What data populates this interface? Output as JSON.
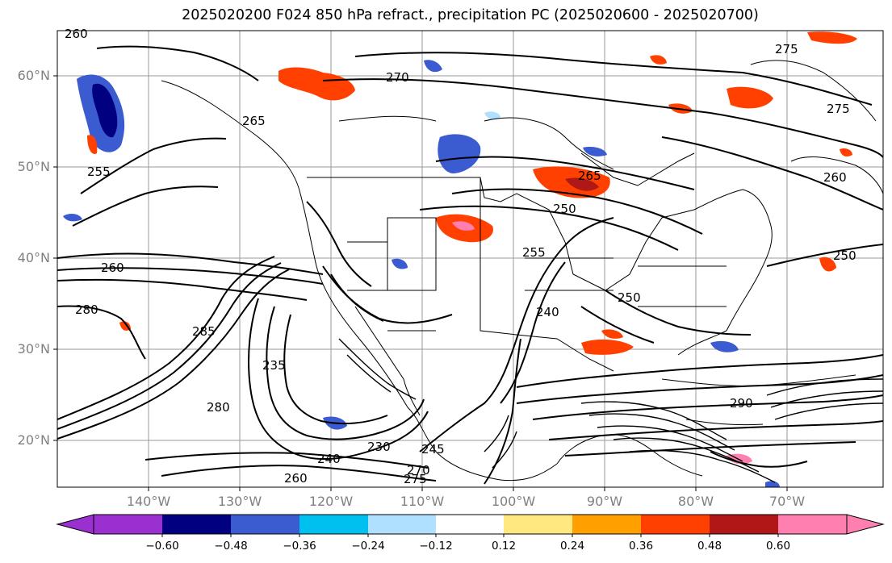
{
  "title": "2025020200 F024 850 hPa refract., precipitation PC (2025020600 - 2025020700)",
  "latitude_labels": [
    "60°N",
    "50°N",
    "40°N",
    "30°N",
    "20°N"
  ],
  "longitude_labels": [
    "140°W",
    "130°W",
    "120°W",
    "110°W",
    "100°W",
    "90°W",
    "80°W",
    "70°W"
  ],
  "contour_labels": [
    "260",
    "270",
    "265",
    "255",
    "250",
    "275",
    "280",
    "285",
    "235",
    "230",
    "240",
    "245",
    "260",
    "270",
    "275",
    "265",
    "250",
    "255",
    "240",
    "250",
    "260",
    "275",
    "290",
    "280",
    "260"
  ],
  "colorbar": {
    "colors": [
      "#9b30d0",
      "#000080",
      "#3b5bd0",
      "#00c0f0",
      "#b0e0ff",
      "#ffffff",
      "#ffe880",
      "#ffa000",
      "#ff4000",
      "#b01818",
      "#ff80b0"
    ],
    "tick_labels": [
      "−0.60",
      "−0.48",
      "−0.36",
      "−0.24",
      "−0.12",
      "0.12",
      "0.24",
      "0.36",
      "0.48",
      "0.60"
    ]
  }
}
